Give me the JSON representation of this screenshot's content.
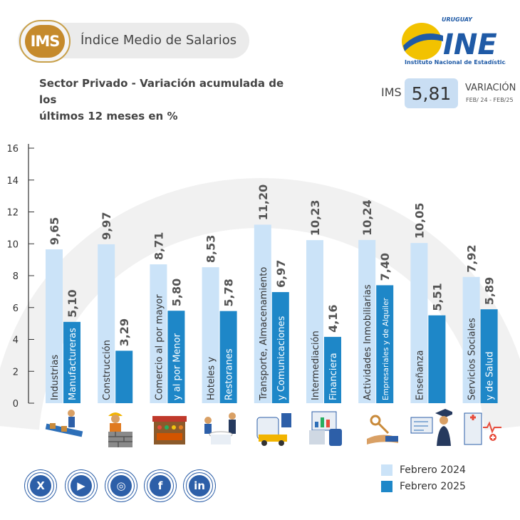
{
  "header": {
    "badge": "IMS",
    "title": "Índice Medio de Salarios"
  },
  "logo": {
    "top_text": "URUGUAY",
    "brand": "INE",
    "subtitle": "Instituto Nacional de Estadística"
  },
  "subtitle": {
    "line1": "Sector Privado - Variación acumulada de los",
    "line2": "últimos 12 meses en %"
  },
  "ims_summary": {
    "label": "IMS",
    "value": "5,81",
    "variation_label": "VARIACIÓN",
    "period": "FEB/ 24 - FEB/25"
  },
  "colors": {
    "feb2024": "#cbe3f8",
    "feb2025": "#1e87c8",
    "accent": "#c58a2c",
    "social": "#2d5fa8"
  },
  "chart_data": {
    "type": "bar",
    "categories": [
      {
        "line1": "Industrias",
        "line2": "Manufactureras"
      },
      {
        "line1": "Construcción",
        "line2": ""
      },
      {
        "line1": "Comercio al por mayor",
        "line2": "y al por Menor"
      },
      {
        "line1": "Hoteles y",
        "line2": "Restoranes"
      },
      {
        "line1": "Transporte, Almacenamiento",
        "line2": "y Comunicaciones"
      },
      {
        "line1": "Intermediación",
        "line2": "Financiera"
      },
      {
        "line1": "Actividades Inmobiliarias",
        "line2": "Empresariales y de Alquiler"
      },
      {
        "line1": "Enseñanza",
        "line2": ""
      },
      {
        "line1": "Servicios Sociales",
        "line2": "y de Salud"
      }
    ],
    "series": [
      {
        "name": "Febrero 2024",
        "values": [
          9.65,
          9.97,
          8.71,
          8.53,
          11.2,
          10.23,
          10.24,
          10.05,
          7.92
        ],
        "labels": [
          "9,65",
          "9,97",
          "8,71",
          "8,53",
          "11,20",
          "10,23",
          "10,24",
          "10,05",
          "7,92"
        ]
      },
      {
        "name": "Febrero 2025",
        "values": [
          5.1,
          3.29,
          5.8,
          5.78,
          6.97,
          4.16,
          7.4,
          5.51,
          5.89
        ],
        "labels": [
          "5,10",
          "3,29",
          "5,80",
          "5,78",
          "6,97",
          "4,16",
          "7,40",
          "5,51",
          "5,89"
        ]
      }
    ],
    "yticks": [
      "0",
      "2",
      "4",
      "6",
      "8",
      "10",
      "12",
      "14",
      "16"
    ],
    "ylim": [
      0,
      16
    ],
    "legend_position": "bottom-right"
  },
  "sector_icons": [
    "factory-workers-icon",
    "construction-worker-icon",
    "market-stall-icon",
    "restaurant-icon",
    "transport-icon",
    "finance-icon",
    "real-estate-keys-icon",
    "graduate-teacher-icon",
    "hospital-icon"
  ],
  "social": [
    {
      "name": "x-icon",
      "glyph": "X"
    },
    {
      "name": "youtube-icon",
      "glyph": "▶"
    },
    {
      "name": "instagram-icon",
      "glyph": "◎"
    },
    {
      "name": "facebook-icon",
      "glyph": "f"
    },
    {
      "name": "linkedin-icon",
      "glyph": "in"
    }
  ]
}
